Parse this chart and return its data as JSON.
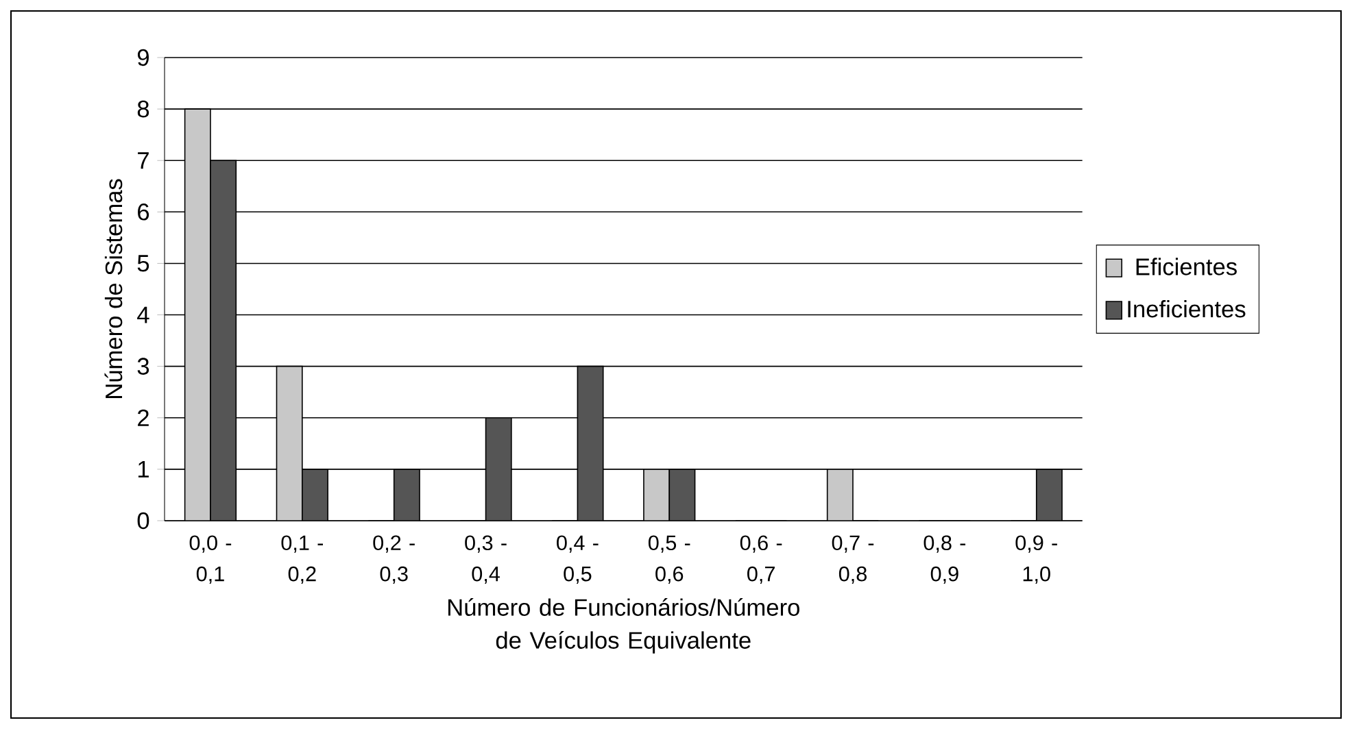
{
  "chart_data": {
    "type": "bar",
    "categories": [
      "0,0 - 0,1",
      "0,1 - 0,2",
      "0,2 - 0,3",
      "0,3 - 0,4",
      "0,4 - 0,5",
      "0,5 - 0,6",
      "0,6 - 0,7",
      "0,7 - 0,8",
      "0,8 - 0,9",
      "0,9 - 1,0"
    ],
    "series": [
      {
        "name": "Eficientes",
        "color": "#c8c8c8",
        "values": [
          8,
          3,
          0,
          0,
          0,
          1,
          0,
          1,
          0,
          0
        ]
      },
      {
        "name": "Ineficientes",
        "color": "#555555",
        "values": [
          7,
          1,
          1,
          2,
          3,
          1,
          0,
          0,
          0,
          1
        ]
      }
    ],
    "xlabel": "Número de Funcionários/Número de Veículos Equivalente",
    "ylabel": "Número de Sistemas",
    "ylim": [
      0,
      9
    ],
    "yticks": [
      0,
      1,
      2,
      3,
      4,
      5,
      6,
      7,
      8,
      9
    ],
    "grid": "y",
    "legend": "right"
  }
}
